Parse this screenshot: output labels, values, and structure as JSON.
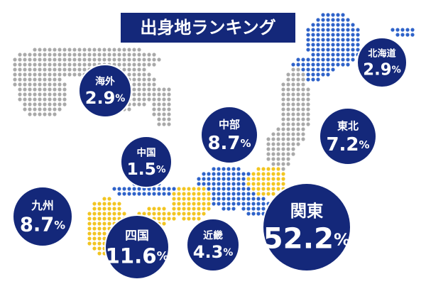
{
  "title": "出身地ランキング",
  "regions": [
    {
      "name": "北海道",
      "value": "2.9",
      "unit": "%"
    },
    {
      "name": "海外",
      "value": "2.9",
      "unit": "%"
    },
    {
      "name": "中部",
      "value": "8.7",
      "unit": "%"
    },
    {
      "name": "東北",
      "value": "7.2",
      "unit": "%"
    },
    {
      "name": "中国",
      "value": "1.5",
      "unit": "%"
    },
    {
      "name": "九州",
      "value": "8.7",
      "unit": "%"
    },
    {
      "name": "四国",
      "value": "11.6",
      "unit": "%"
    },
    {
      "name": "近畿",
      "value": "4.3",
      "unit": "%"
    },
    {
      "name": "関東",
      "value": "52.2",
      "unit": "%"
    }
  ]
}
